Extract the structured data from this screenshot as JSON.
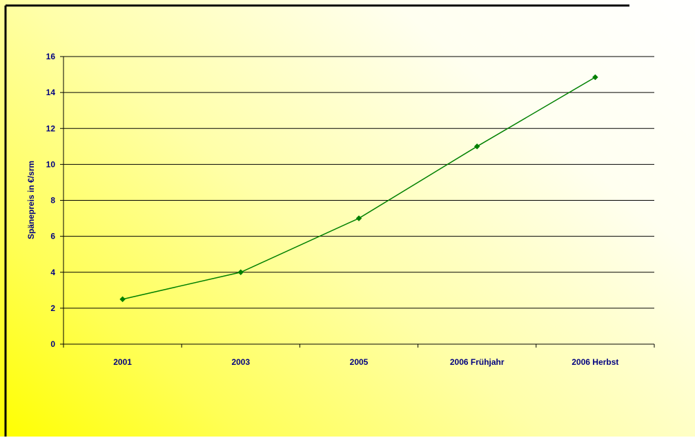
{
  "chart_data": {
    "type": "line",
    "title": "",
    "xlabel": "",
    "ylabel": "Spänepreis in €/srm",
    "categories": [
      "2001",
      "2003",
      "2005",
      "2006 Frühjahr",
      "2006 Herbst"
    ],
    "series": [
      {
        "values": [
          2.5,
          4,
          7,
          11,
          14.85
        ]
      }
    ],
    "ylim": [
      0,
      16
    ],
    "yticks": [
      "0",
      "2",
      "4",
      "6",
      "8",
      "10",
      "12",
      "14",
      "16"
    ],
    "grid": "horizontal",
    "legend": "none",
    "line_color": "#008000",
    "marker": "diamond",
    "text_color": "#000080"
  }
}
